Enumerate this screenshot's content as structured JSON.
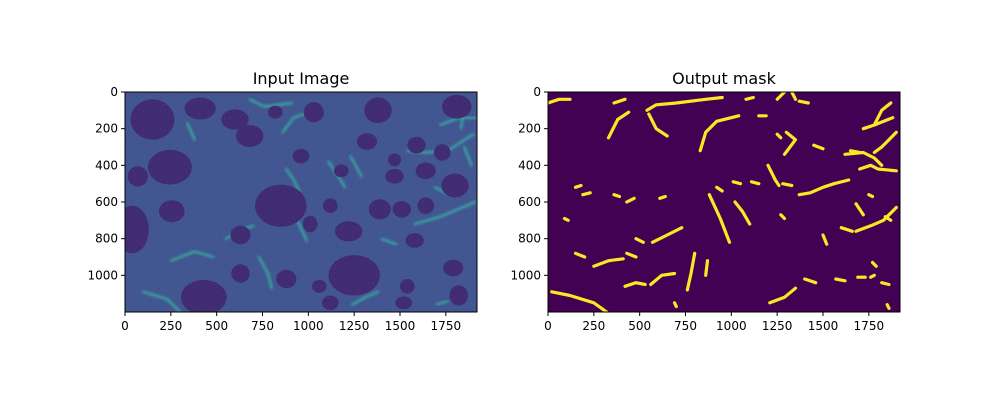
{
  "chart_data": [
    {
      "type": "heatmap",
      "title": "Input Image",
      "xlim": [
        0,
        1920
      ],
      "ylim": [
        1200,
        0
      ],
      "x_ticks": [
        0,
        250,
        500,
        750,
        1000,
        1250,
        1500,
        1750
      ],
      "y_ticks": [
        0,
        200,
        400,
        600,
        800,
        1000
      ],
      "colormap": "viridis",
      "colors": {
        "background": "#3b4c8a",
        "dark_blob": "#3a1e68",
        "bright_fiber": "#2fb89c"
      },
      "blobs": [
        [
          150,
          150,
          120,
          110
        ],
        [
          245,
          410,
          120,
          95
        ],
        [
          410,
          90,
          85,
          60
        ],
        [
          600,
          150,
          75,
          55
        ],
        [
          680,
          240,
          75,
          60
        ],
        [
          1030,
          110,
          55,
          55
        ],
        [
          1380,
          100,
          75,
          70
        ],
        [
          1810,
          80,
          80,
          65
        ],
        [
          1320,
          270,
          55,
          45
        ],
        [
          1590,
          290,
          50,
          45
        ],
        [
          1730,
          330,
          45,
          45
        ],
        [
          1640,
          430,
          55,
          45
        ],
        [
          1470,
          460,
          50,
          40
        ],
        [
          1800,
          510,
          75,
          65
        ],
        [
          70,
          460,
          55,
          55
        ],
        [
          850,
          620,
          140,
          115
        ],
        [
          255,
          650,
          70,
          60
        ],
        [
          40,
          750,
          90,
          130
        ],
        [
          630,
          780,
          55,
          50
        ],
        [
          1220,
          760,
          75,
          55
        ],
        [
          1390,
          640,
          60,
          55
        ],
        [
          1510,
          640,
          50,
          45
        ],
        [
          1580,
          810,
          50,
          40
        ],
        [
          1250,
          1000,
          140,
          110
        ],
        [
          430,
          1120,
          125,
          95
        ],
        [
          880,
          1020,
          55,
          50
        ],
        [
          630,
          990,
          50,
          50
        ],
        [
          1790,
          960,
          55,
          45
        ],
        [
          1820,
          1110,
          50,
          55
        ],
        [
          1640,
          620,
          45,
          45
        ],
        [
          1010,
          720,
          40,
          45
        ],
        [
          1120,
          1150,
          45,
          40
        ],
        [
          1540,
          1060,
          40,
          40
        ],
        [
          1120,
          620,
          40,
          40
        ],
        [
          960,
          350,
          45,
          40
        ],
        [
          1180,
          430,
          40,
          35
        ],
        [
          1470,
          370,
          35,
          35
        ],
        [
          820,
          110,
          40,
          35
        ],
        [
          1060,
          1060,
          40,
          35
        ],
        [
          1520,
          1150,
          45,
          35
        ]
      ],
      "fibers": [
        [
          [
            680,
            40
          ],
          [
            760,
            80
          ],
          [
            910,
            60
          ]
        ],
        [
          [
            860,
            220
          ],
          [
            920,
            140
          ],
          [
            1040,
            100
          ]
        ],
        [
          [
            1720,
            180
          ],
          [
            1820,
            140
          ],
          [
            1910,
            140
          ]
        ],
        [
          [
            1540,
            320
          ],
          [
            1640,
            330
          ],
          [
            1760,
            320
          ],
          [
            1900,
            230
          ]
        ],
        [
          [
            900,
            580
          ],
          [
            940,
            700
          ],
          [
            990,
            810
          ]
        ],
        [
          [
            550,
            800
          ],
          [
            620,
            760
          ],
          [
            700,
            730
          ]
        ],
        [
          [
            1580,
            720
          ],
          [
            1720,
            680
          ],
          [
            1910,
            600
          ]
        ],
        [
          [
            250,
            920
          ],
          [
            380,
            870
          ],
          [
            480,
            900
          ]
        ],
        [
          [
            100,
            1090
          ],
          [
            230,
            1130
          ],
          [
            300,
            1200
          ]
        ],
        [
          [
            730,
            900
          ],
          [
            780,
            990
          ],
          [
            800,
            1070
          ]
        ],
        [
          [
            1850,
            100
          ],
          [
            1830,
            200
          ]
        ],
        [
          [
            1230,
            350
          ],
          [
            1290,
            460
          ]
        ],
        [
          [
            340,
            170
          ],
          [
            380,
            260
          ]
        ],
        [
          [
            880,
            420
          ],
          [
            920,
            480
          ],
          [
            950,
            540
          ]
        ],
        [
          [
            1690,
            520
          ],
          [
            1770,
            560
          ],
          [
            1830,
            540
          ]
        ],
        [
          [
            1110,
            380
          ],
          [
            1170,
            470
          ],
          [
            1200,
            520
          ]
        ],
        [
          [
            1400,
            800
          ],
          [
            1480,
            830
          ]
        ],
        [
          [
            1240,
            1160
          ],
          [
            1310,
            1120
          ],
          [
            1380,
            1090
          ]
        ],
        [
          [
            1850,
            300
          ],
          [
            1890,
            400
          ]
        ],
        [
          [
            1700,
            1160
          ],
          [
            1760,
            1140
          ]
        ]
      ]
    },
    {
      "type": "heatmap",
      "title": "Output mask",
      "xlim": [
        0,
        1920
      ],
      "ylim": [
        1200,
        0
      ],
      "x_ticks": [
        0,
        250,
        500,
        750,
        1000,
        1250,
        1500,
        1750
      ],
      "y_ticks": [
        0,
        200,
        400,
        600,
        800,
        1000
      ],
      "colormap": "viridis",
      "colors": {
        "background": "#440154",
        "mask": "#fde725"
      },
      "strokes": [
        [
          [
            0,
            60
          ],
          [
            60,
            40
          ],
          [
            120,
            40
          ]
        ],
        [
          [
            330,
            250
          ],
          [
            380,
            150
          ],
          [
            440,
            110
          ]
        ],
        [
          [
            360,
            60
          ],
          [
            420,
            40
          ]
        ],
        [
          [
            540,
            100
          ],
          [
            590,
            70
          ],
          [
            700,
            60
          ],
          [
            860,
            40
          ],
          [
            950,
            30
          ]
        ],
        [
          [
            550,
            120
          ],
          [
            590,
            200
          ],
          [
            650,
            240
          ]
        ],
        [
          [
            830,
            320
          ],
          [
            860,
            220
          ],
          [
            920,
            160
          ],
          [
            1040,
            130
          ]
        ],
        [
          [
            1250,
            40
          ],
          [
            1290,
            0
          ]
        ],
        [
          [
            1330,
            0
          ],
          [
            1350,
            40
          ]
        ],
        [
          [
            1370,
            50
          ],
          [
            1420,
            60
          ]
        ],
        [
          [
            1300,
            220
          ],
          [
            1350,
            260
          ],
          [
            1290,
            340
          ]
        ],
        [
          [
            1450,
            290
          ],
          [
            1500,
            310
          ]
        ],
        [
          [
            1620,
            340
          ],
          [
            1720,
            330
          ],
          [
            1780,
            360
          ],
          [
            1820,
            400
          ]
        ],
        [
          [
            1720,
            200
          ],
          [
            1780,
            180
          ],
          [
            1880,
            140
          ]
        ],
        [
          [
            1870,
            60
          ],
          [
            1820,
            100
          ],
          [
            1780,
            180
          ]
        ],
        [
          [
            1900,
            220
          ],
          [
            1860,
            260
          ],
          [
            1820,
            300
          ],
          [
            1780,
            330
          ]
        ],
        [
          [
            1650,
            320
          ],
          [
            1700,
            330
          ]
        ],
        [
          [
            1700,
            420
          ],
          [
            1760,
            400
          ],
          [
            1800,
            420
          ],
          [
            1900,
            430
          ]
        ],
        [
          [
            1560,
            500
          ],
          [
            1640,
            480
          ]
        ],
        [
          [
            1200,
            400
          ],
          [
            1240,
            480
          ],
          [
            1260,
            510
          ]
        ],
        [
          [
            1280,
            500
          ],
          [
            1330,
            510
          ]
        ],
        [
          [
            1110,
            490
          ],
          [
            1150,
            500
          ]
        ],
        [
          [
            1010,
            490
          ],
          [
            1050,
            500
          ]
        ],
        [
          [
            920,
            520
          ],
          [
            950,
            540
          ]
        ],
        [
          [
            1370,
            560
          ],
          [
            1430,
            550
          ],
          [
            1500,
            520
          ],
          [
            1560,
            500
          ]
        ],
        [
          [
            1680,
            610
          ],
          [
            1720,
            670
          ]
        ],
        [
          [
            1680,
            760
          ],
          [
            1760,
            730
          ],
          [
            1830,
            700
          ],
          [
            1900,
            630
          ]
        ],
        [
          [
            1600,
            740
          ],
          [
            1660,
            760
          ]
        ],
        [
          [
            1500,
            780
          ],
          [
            1520,
            830
          ]
        ],
        [
          [
            880,
            560
          ],
          [
            940,
            690
          ],
          [
            990,
            820
          ]
        ],
        [
          [
            1270,
            670
          ],
          [
            1290,
            690
          ]
        ],
        [
          [
            1020,
            600
          ],
          [
            1060,
            650
          ],
          [
            1100,
            720
          ]
        ],
        [
          [
            570,
            820
          ],
          [
            650,
            780
          ],
          [
            730,
            740
          ]
        ],
        [
          [
            560,
            1050
          ],
          [
            620,
            1000
          ],
          [
            690,
            990
          ]
        ],
        [
          [
            430,
            880
          ],
          [
            480,
            900
          ]
        ],
        [
          [
            480,
            800
          ],
          [
            520,
            820
          ]
        ],
        [
          [
            250,
            950
          ],
          [
            330,
            920
          ],
          [
            410,
            910
          ]
        ],
        [
          [
            150,
            880
          ],
          [
            200,
            900
          ]
        ],
        [
          [
            20,
            1090
          ],
          [
            120,
            1110
          ],
          [
            250,
            1150
          ],
          [
            320,
            1200
          ]
        ],
        [
          [
            420,
            1060
          ],
          [
            480,
            1040
          ],
          [
            530,
            1050
          ]
        ],
        [
          [
            690,
            1150
          ],
          [
            700,
            1170
          ]
        ],
        [
          [
            800,
            880
          ],
          [
            780,
            990
          ],
          [
            760,
            1080
          ]
        ],
        [
          [
            870,
            920
          ],
          [
            860,
            1000
          ]
        ],
        [
          [
            1210,
            1150
          ],
          [
            1290,
            1120
          ],
          [
            1350,
            1070
          ]
        ],
        [
          [
            1400,
            1020
          ],
          [
            1460,
            1040
          ]
        ],
        [
          [
            1570,
            1020
          ],
          [
            1620,
            1030
          ]
        ],
        [
          [
            1690,
            1010
          ],
          [
            1730,
            1010
          ]
        ],
        [
          [
            1760,
            1010
          ],
          [
            1780,
            1000
          ]
        ],
        [
          [
            1850,
            1160
          ],
          [
            1860,
            1180
          ]
        ],
        [
          [
            430,
            600
          ],
          [
            470,
            580
          ]
        ],
        [
          [
            610,
            580
          ],
          [
            640,
            570
          ]
        ],
        [
          [
            190,
            560
          ],
          [
            230,
            550
          ]
        ],
        [
          [
            150,
            520
          ],
          [
            180,
            510
          ]
        ],
        [
          [
            90,
            690
          ],
          [
            110,
            700
          ]
        ],
        [
          [
            360,
            560
          ],
          [
            390,
            570
          ]
        ],
        [
          [
            1250,
            230
          ],
          [
            1270,
            250
          ]
        ],
        [
          [
            1750,
            560
          ],
          [
            1770,
            570
          ]
        ],
        [
          [
            1840,
            680
          ],
          [
            1870,
            700
          ]
        ],
        [
          [
            1770,
            930
          ],
          [
            1790,
            950
          ]
        ],
        [
          [
            1820,
            1040
          ],
          [
            1860,
            1050
          ]
        ],
        [
          [
            1080,
            40
          ],
          [
            1120,
            30
          ]
        ],
        [
          [
            1150,
            130
          ],
          [
            1190,
            130
          ]
        ]
      ]
    }
  ]
}
